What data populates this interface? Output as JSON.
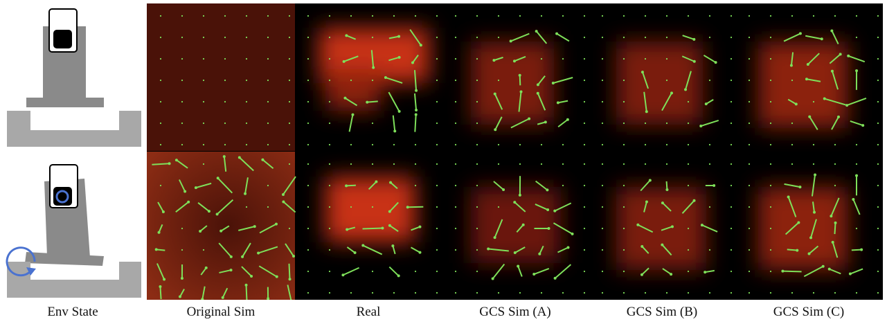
{
  "figure": {
    "column_labels": [
      "Env State",
      "Original Sim",
      "Real",
      "GCS Sim (A)",
      "GCS Sim (B)",
      "GCS Sim (C)"
    ]
  }
}
